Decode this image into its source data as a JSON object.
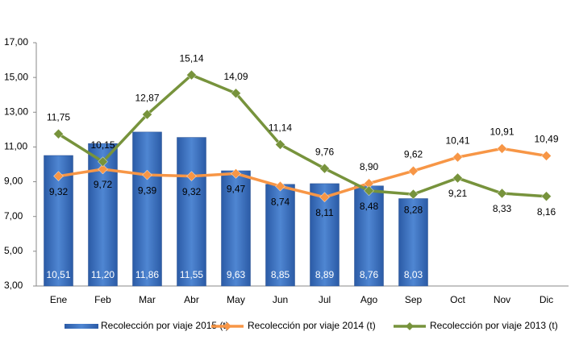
{
  "chart_data": {
    "type": "bar_line",
    "categories": [
      "Ene",
      "Feb",
      "Mar",
      "Abr",
      "May",
      "Jun",
      "Jul",
      "Ago",
      "Sep",
      "Oct",
      "Nov",
      "Dic"
    ],
    "ylim": [
      3,
      17
    ],
    "yticks": [
      {
        "value": 3,
        "label": "3,00"
      },
      {
        "value": 5,
        "label": "5,00"
      },
      {
        "value": 7,
        "label": "7,00"
      },
      {
        "value": 9,
        "label": "9,00"
      },
      {
        "value": 11,
        "label": "11,00"
      },
      {
        "value": 13,
        "label": "13,00"
      },
      {
        "value": 15,
        "label": "15,00"
      },
      {
        "value": 17,
        "label": "17,00"
      }
    ],
    "grid": false,
    "legend": "bottom",
    "series": [
      {
        "name": "Recolección por viaje 2015 (t)",
        "type": "bar",
        "color": "#3f6fb8",
        "values": [
          10.51,
          11.2,
          11.86,
          11.55,
          9.63,
          8.85,
          8.89,
          8.76,
          8.03,
          null,
          null,
          null
        ],
        "value_labels": [
          "10,51",
          "11,20",
          "11,86",
          "11,55",
          "9,63",
          "8,85",
          "8,89",
          "8,76",
          "8,03",
          null,
          null,
          null
        ]
      },
      {
        "name": "Recolección por viaje 2014 (t)",
        "type": "line",
        "color": "#f79646",
        "values": [
          9.32,
          9.72,
          9.39,
          9.32,
          9.47,
          8.74,
          8.11,
          8.9,
          9.62,
          10.41,
          10.91,
          10.49
        ],
        "value_labels": [
          "9,32",
          "9,72",
          "9,39",
          "9,32",
          "9,47",
          "8,74",
          "8,11",
          "8,90",
          "9,62",
          "10,41",
          "10,91",
          "10,49"
        ]
      },
      {
        "name": "Recolección por viaje 2013 (t)",
        "type": "line",
        "color": "#77933c",
        "values": [
          11.75,
          10.15,
          12.87,
          15.14,
          14.09,
          11.14,
          9.76,
          8.48,
          8.28,
          9.21,
          8.33,
          8.16
        ],
        "value_labels": [
          "11,75",
          "10,15",
          "12,87",
          "15,14",
          "14,09",
          "11,14",
          "9,76",
          "8,48",
          "8,28",
          "9,21",
          "8,33",
          "8,16"
        ]
      }
    ]
  }
}
